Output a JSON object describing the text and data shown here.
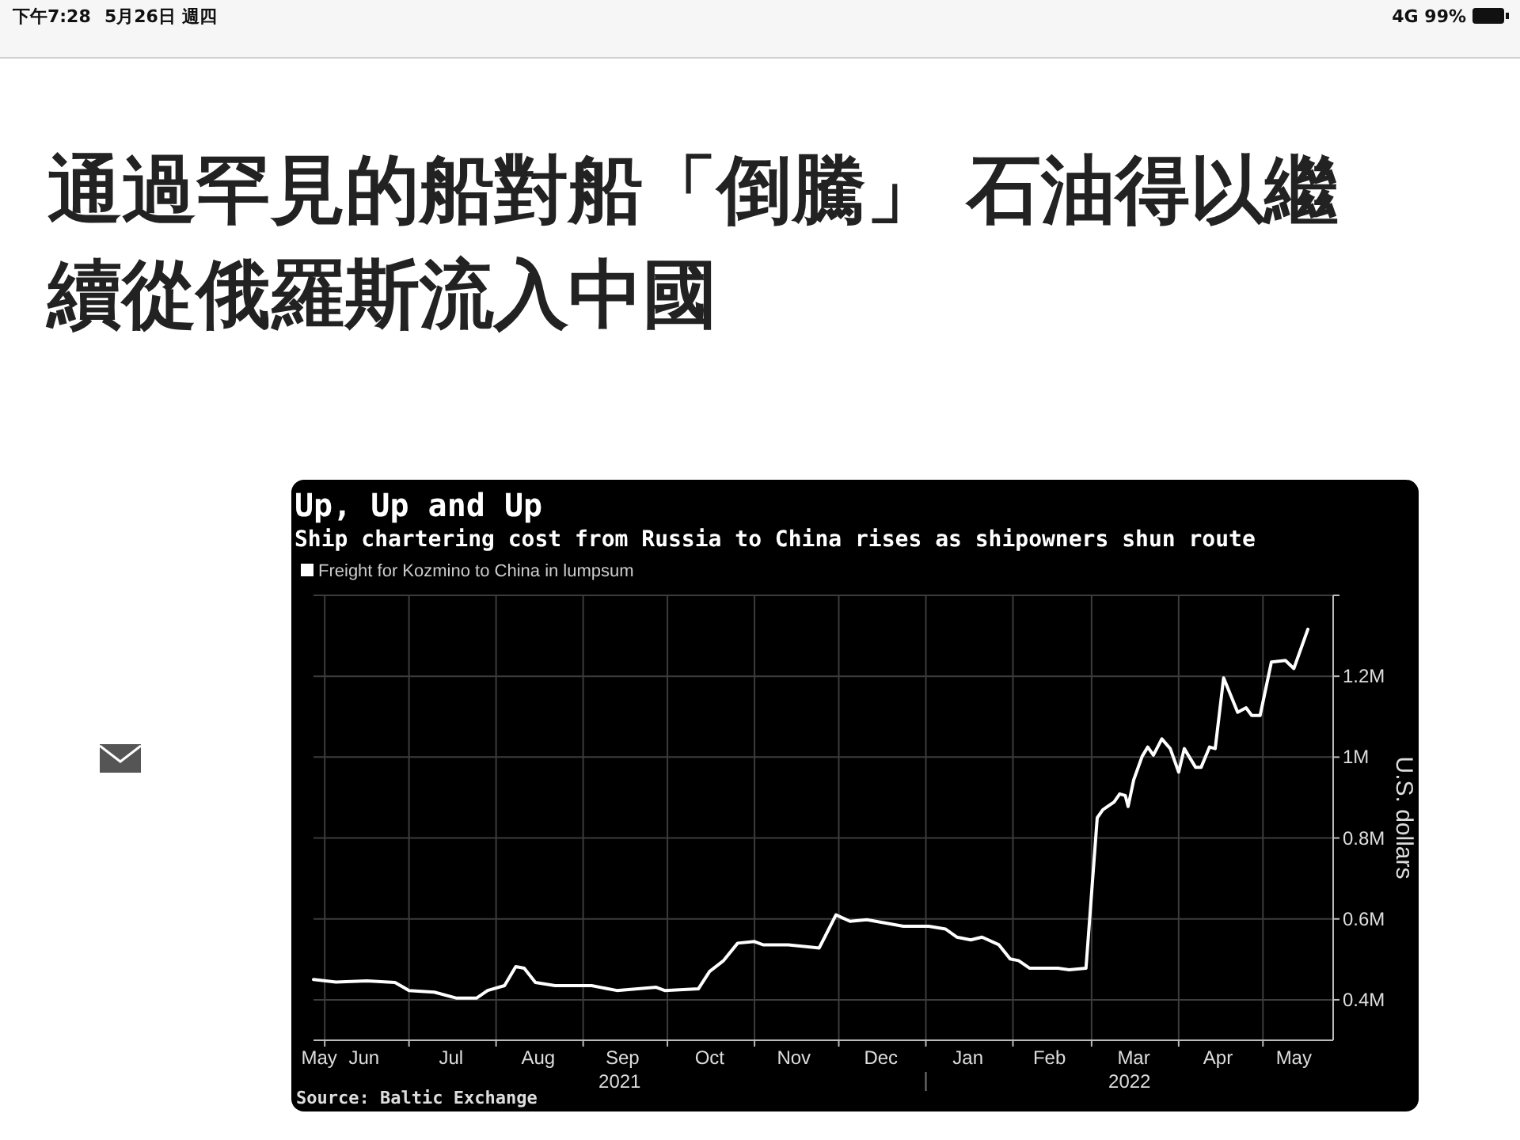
{
  "chart_data": {
    "type": "line",
    "title": "Up, Up and Up",
    "subtitle": "Ship chartering cost from Russia to China rises as shipowners shun route",
    "ylabel": "U.S. dollars",
    "annotations": [
      "下午7:28",
      "5月26日 週四",
      "4G 99%",
      "通過罕見的船對船「倒騰」 石油得以繼續從俄羅斯流入中國",
      "Source: Baltic Exchange",
      "2021",
      "2022"
    ],
    "x": [
      "2021-05-28",
      "2021-06-05",
      "2021-06-16",
      "2021-06-26",
      "2021-07-01",
      "2021-07-10",
      "2021-07-18",
      "2021-07-25",
      "2021-07-29",
      "2021-08-04",
      "2021-08-08",
      "2021-08-11",
      "2021-08-15",
      "2021-08-22",
      "2021-09-04",
      "2021-09-13",
      "2021-09-27",
      "2021-09-30",
      "2021-10-12",
      "2021-10-16",
      "2021-10-21",
      "2021-10-26",
      "2021-11-01",
      "2021-11-04",
      "2021-11-13",
      "2021-11-24",
      "2021-11-26",
      "2021-11-30",
      "2021-12-05",
      "2021-12-11",
      "2021-12-24",
      "2022-01-02",
      "2022-01-08",
      "2022-01-12",
      "2022-01-17",
      "2022-01-21",
      "2022-01-27",
      "2022-01-31",
      "2022-02-03",
      "2022-02-07",
      "2022-02-17",
      "2022-02-21",
      "2022-02-27",
      "2022-03-03",
      "2022-03-05",
      "2022-03-09",
      "2022-03-11",
      "2022-03-13",
      "2022-03-14",
      "2022-03-16",
      "2022-03-19",
      "2022-03-21",
      "2022-03-23",
      "2022-03-26",
      "2022-03-29",
      "2022-04-01",
      "2022-04-03",
      "2022-04-07",
      "2022-04-09",
      "2022-04-12",
      "2022-04-14",
      "2022-04-17",
      "2022-04-22",
      "2022-04-25",
      "2022-04-27",
      "2022-04-30",
      "2022-05-04",
      "2022-05-09",
      "2022-05-12",
      "2022-05-17"
    ],
    "series": [
      {
        "name": "Freight for Kozmino to China in lumpsum",
        "color": "#ffffff",
        "values": [
          450000,
          444000,
          447000,
          443000,
          423000,
          419000,
          404000,
          404000,
          423000,
          435000,
          482000,
          478000,
          443000,
          435000,
          435000,
          423000,
          431000,
          423000,
          427000,
          470000,
          497000,
          540000,
          544000,
          536000,
          536000,
          528000,
          555000,
          610000,
          594000,
          598000,
          582000,
          582000,
          575000,
          555000,
          548000,
          555000,
          536000,
          501000,
          497000,
          478000,
          478000,
          474000,
          478000,
          850000,
          870000,
          889000,
          909000,
          905000,
          878000,
          944000,
          1002000,
          1025000,
          1005000,
          1045000,
          1021000,
          963000,
          1021000,
          975000,
          975000,
          1025000,
          1021000,
          1196000,
          1111000,
          1122000,
          1103000,
          1103000,
          1235000,
          1239000,
          1219000,
          1316000
        ]
      }
    ],
    "xlim": [
      "2021-05-28",
      "2022-05-26"
    ],
    "xticks": [
      {
        "value": "2021-05-30",
        "label": "May"
      },
      {
        "value": "2021-06-01",
        "label": null
      },
      {
        "value": "2021-06-15",
        "label": "Jun"
      },
      {
        "value": "2021-07-01",
        "label": null
      },
      {
        "value": "2021-07-16",
        "label": "Jul"
      },
      {
        "value": "2021-08-01",
        "label": null
      },
      {
        "value": "2021-08-16",
        "label": "Aug"
      },
      {
        "value": "2021-09-01",
        "label": null
      },
      {
        "value": "2021-09-15",
        "label": "Sep"
      },
      {
        "value": "2021-10-01",
        "label": null
      },
      {
        "value": "2021-10-16",
        "label": "Oct"
      },
      {
        "value": "2021-11-01",
        "label": null
      },
      {
        "value": "2021-11-15",
        "label": "Nov"
      },
      {
        "value": "2021-12-01",
        "label": null
      },
      {
        "value": "2021-12-16",
        "label": "Dec"
      },
      {
        "value": "2022-01-01",
        "label": null
      },
      {
        "value": "2022-01-16",
        "label": "Jan"
      },
      {
        "value": "2022-02-01",
        "label": null
      },
      {
        "value": "2022-02-14",
        "label": "Feb"
      },
      {
        "value": "2022-03-01",
        "label": null
      },
      {
        "value": "2022-03-16",
        "label": "Mar"
      },
      {
        "value": "2022-04-01",
        "label": null
      },
      {
        "value": "2022-04-15",
        "label": "Apr"
      },
      {
        "value": "2022-05-01",
        "label": null
      },
      {
        "value": "2022-05-12",
        "label": "May"
      }
    ],
    "ylim": [
      300000,
      1400000
    ],
    "yticks": [
      {
        "value": 400000,
        "label": "0.4M"
      },
      {
        "value": 600000,
        "label": "0.6M"
      },
      {
        "value": 800000,
        "label": "0.8M"
      },
      {
        "value": 1000000,
        "label": "1M"
      },
      {
        "value": 1200000,
        "label": "1.2M"
      },
      {
        "value": 1400000,
        "label": null
      }
    ],
    "grid": true,
    "legend": "top left",
    "marker": "none",
    "line_style": "solid"
  }
}
